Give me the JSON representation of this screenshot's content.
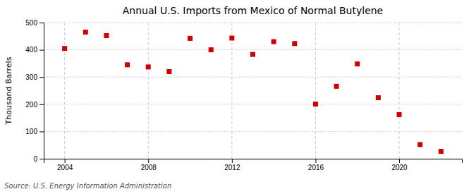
{
  "chart_data": {
    "type": "scatter",
    "title": "Annual U.S. Imports from Mexico of Normal Butylene",
    "ylabel": "Thousand Barrels",
    "annotations": [
      "Source: U.S. Energy Information Administration"
    ],
    "x": [
      2004,
      2005,
      2006,
      2007,
      2008,
      2009,
      2010,
      2011,
      2012,
      2013,
      2014,
      2015,
      2016,
      2017,
      2018,
      2019,
      2020,
      2021,
      2022
    ],
    "values": [
      405,
      465,
      452,
      345,
      337,
      320,
      442,
      400,
      443,
      383,
      430,
      423,
      201,
      266,
      348,
      224,
      162,
      52,
      27
    ],
    "color": "#cc0000",
    "marker": "square",
    "xlim": [
      2003.0,
      2023.0
    ],
    "ylim": [
      0,
      500
    ],
    "xticks": [
      2004,
      2008,
      2012,
      2016,
      2020
    ],
    "yticks": [
      0,
      100,
      200,
      300,
      400,
      500
    ],
    "grid": true
  }
}
